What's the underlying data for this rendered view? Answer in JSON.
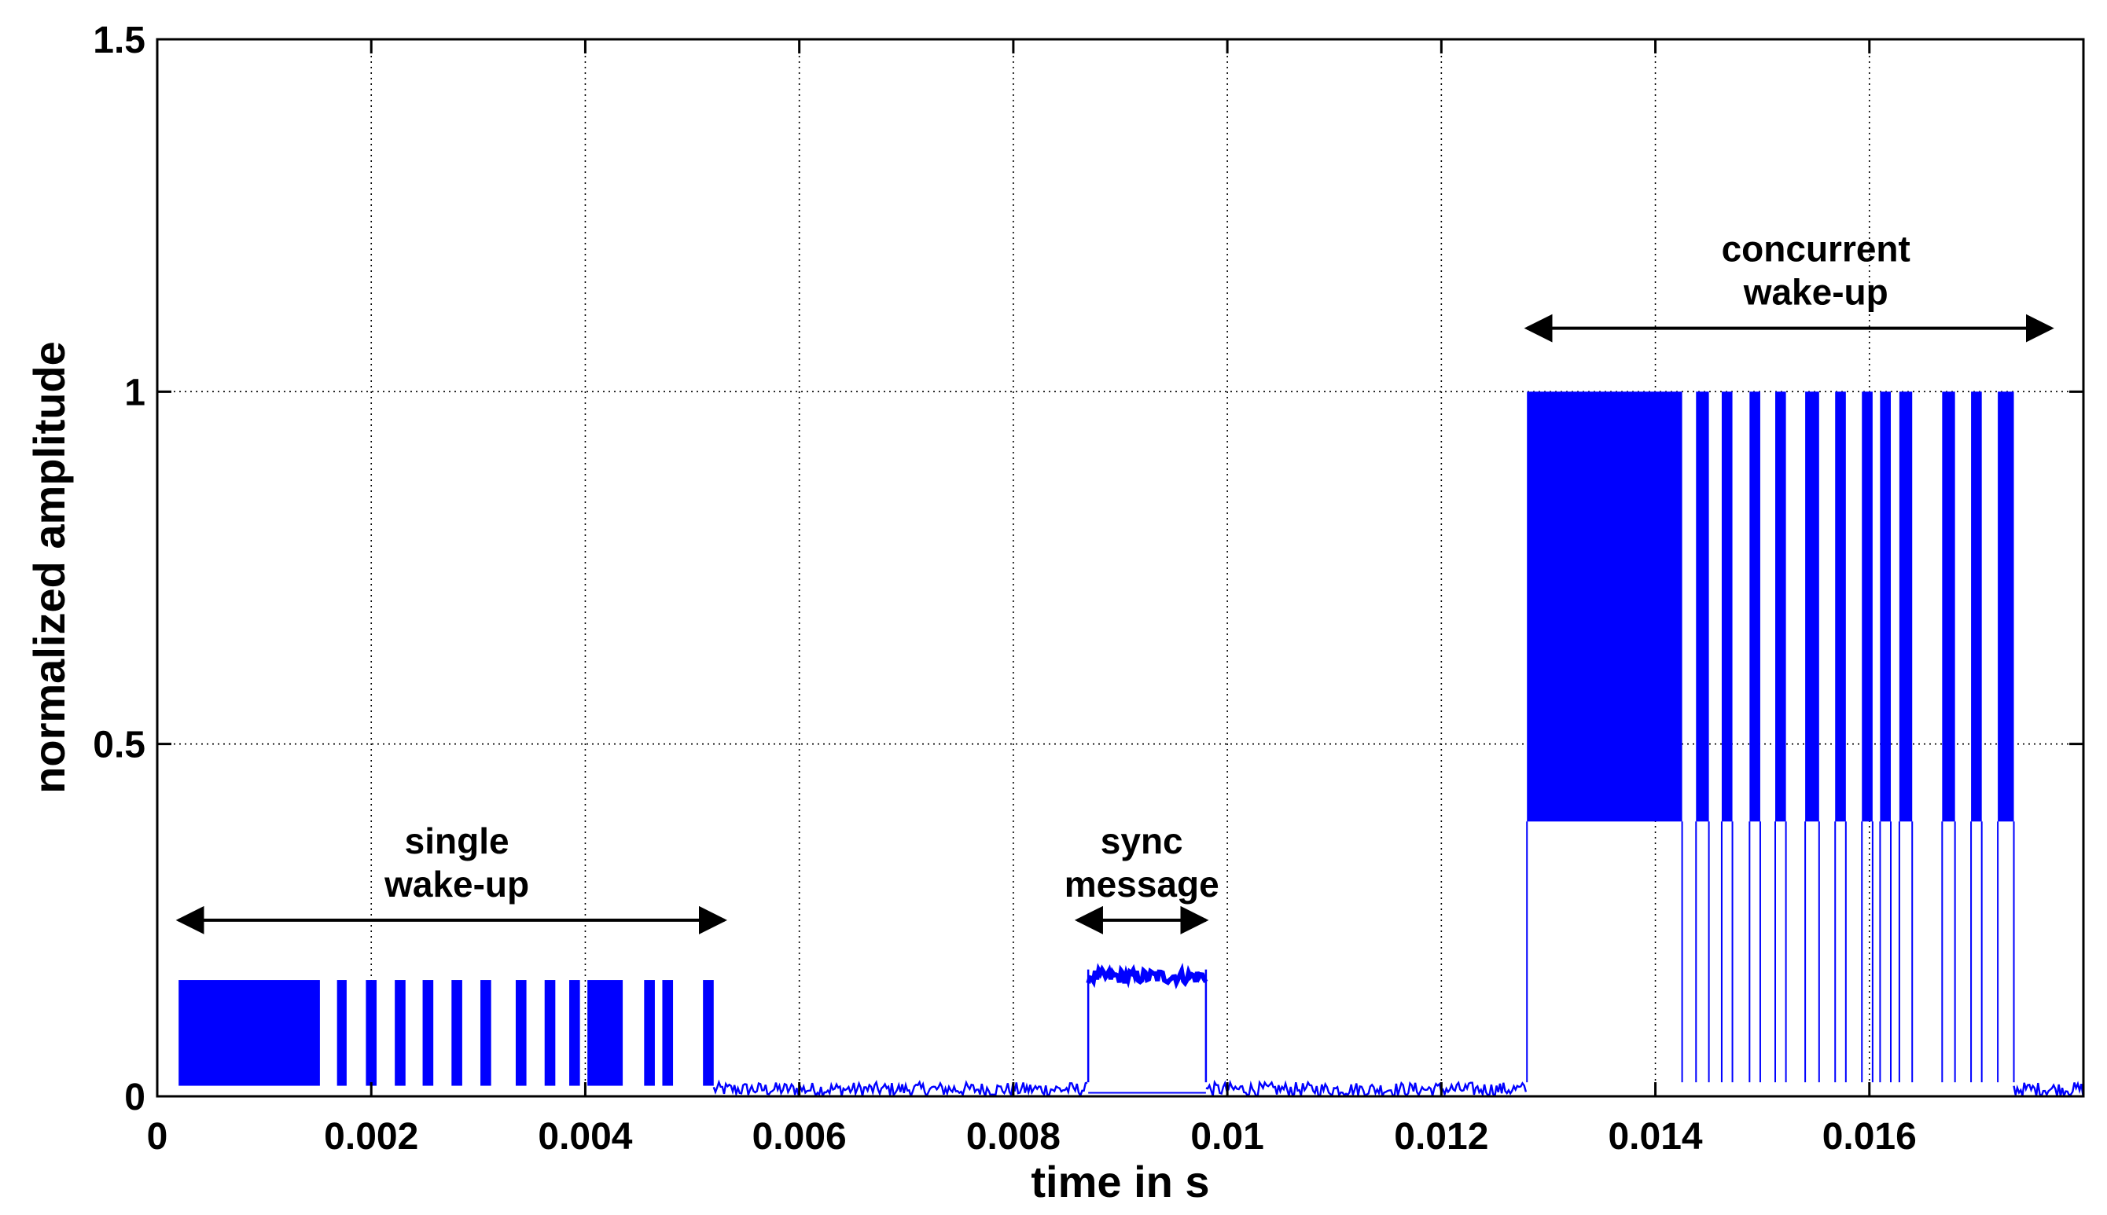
{
  "chart_data": {
    "type": "line",
    "title": "",
    "xlabel": "time in s",
    "ylabel": "normalized amplitude",
    "xlim": [
      0,
      0.018
    ],
    "ylim": [
      0,
      1.5
    ],
    "xticks": [
      0,
      0.002,
      0.004,
      0.006,
      0.008,
      0.01,
      0.012,
      0.014,
      0.016
    ],
    "xtick_labels": [
      "0",
      "0.002",
      "0.004",
      "0.006",
      "0.008",
      "0.01",
      "0.012",
      "0.014",
      "0.016"
    ],
    "yticks": [
      0,
      0.5,
      1,
      1.5
    ],
    "ytick_labels": [
      "0",
      "0.5",
      "1",
      "1.5"
    ],
    "grid": true,
    "series_color": "#0000ff",
    "segments": [
      {
        "kind": "carrier",
        "x0": 0.0002,
        "x1": 0.00152,
        "low": 0.015,
        "high": 0.165
      },
      {
        "kind": "carrier",
        "x0": 0.00168,
        "x1": 0.00177,
        "low": 0.015,
        "high": 0.165
      },
      {
        "kind": "carrier",
        "x0": 0.00195,
        "x1": 0.00205,
        "low": 0.015,
        "high": 0.165
      },
      {
        "kind": "carrier",
        "x0": 0.00222,
        "x1": 0.00232,
        "low": 0.015,
        "high": 0.165
      },
      {
        "kind": "carrier",
        "x0": 0.00248,
        "x1": 0.00258,
        "low": 0.015,
        "high": 0.165
      },
      {
        "kind": "carrier",
        "x0": 0.00275,
        "x1": 0.00285,
        "low": 0.015,
        "high": 0.165
      },
      {
        "kind": "carrier",
        "x0": 0.00302,
        "x1": 0.00312,
        "low": 0.015,
        "high": 0.165
      },
      {
        "kind": "carrier",
        "x0": 0.00335,
        "x1": 0.00345,
        "low": 0.015,
        "high": 0.165
      },
      {
        "kind": "carrier",
        "x0": 0.00362,
        "x1": 0.00372,
        "low": 0.015,
        "high": 0.165
      },
      {
        "kind": "carrier",
        "x0": 0.00385,
        "x1": 0.00395,
        "low": 0.015,
        "high": 0.165
      },
      {
        "kind": "carrier",
        "x0": 0.00402,
        "x1": 0.00435,
        "low": 0.015,
        "high": 0.165
      },
      {
        "kind": "carrier",
        "x0": 0.00455,
        "x1": 0.00465,
        "low": 0.015,
        "high": 0.165
      },
      {
        "kind": "carrier",
        "x0": 0.00472,
        "x1": 0.00482,
        "low": 0.015,
        "high": 0.165
      },
      {
        "kind": "carrier",
        "x0": 0.0051,
        "x1": 0.0052,
        "low": 0.015,
        "high": 0.165
      },
      {
        "kind": "noise",
        "x0": 0.0052,
        "x1": 0.0087,
        "low": 0.0,
        "high": 0.02
      },
      {
        "kind": "sync",
        "x0": 0.0087,
        "x1": 0.0098,
        "low": 0.0,
        "high": 0.18
      },
      {
        "kind": "noise",
        "x0": 0.0098,
        "x1": 0.0128,
        "low": 0.0,
        "high": 0.02
      },
      {
        "kind": "carrier",
        "x0": 0.0128,
        "x1": 0.01425,
        "low": 0.39,
        "high": 1.0
      },
      {
        "kind": "carrier",
        "x0": 0.01438,
        "x1": 0.0145,
        "low": 0.39,
        "high": 1.0
      },
      {
        "kind": "carrier",
        "x0": 0.01462,
        "x1": 0.01472,
        "low": 0.39,
        "high": 1.0
      },
      {
        "kind": "carrier",
        "x0": 0.01488,
        "x1": 0.01498,
        "low": 0.39,
        "high": 1.0
      },
      {
        "kind": "carrier",
        "x0": 0.01512,
        "x1": 0.01522,
        "low": 0.39,
        "high": 1.0
      },
      {
        "kind": "carrier",
        "x0": 0.0154,
        "x1": 0.01553,
        "low": 0.39,
        "high": 1.0
      },
      {
        "kind": "carrier",
        "x0": 0.01568,
        "x1": 0.01578,
        "low": 0.39,
        "high": 1.0
      },
      {
        "kind": "carrier",
        "x0": 0.01593,
        "x1": 0.01603,
        "low": 0.39,
        "high": 1.0
      },
      {
        "kind": "carrier",
        "x0": 0.0161,
        "x1": 0.0162,
        "low": 0.39,
        "high": 1.0
      },
      {
        "kind": "carrier",
        "x0": 0.01628,
        "x1": 0.0164,
        "low": 0.39,
        "high": 1.0
      },
      {
        "kind": "carrier",
        "x0": 0.01668,
        "x1": 0.0168,
        "low": 0.39,
        "high": 1.0
      },
      {
        "kind": "carrier",
        "x0": 0.01695,
        "x1": 0.01705,
        "low": 0.39,
        "high": 1.0
      },
      {
        "kind": "carrier",
        "x0": 0.0172,
        "x1": 0.01735,
        "low": 0.39,
        "high": 1.0
      },
      {
        "kind": "noise",
        "x0": 0.01735,
        "x1": 0.018,
        "low": 0.0,
        "high": 0.02
      }
    ],
    "annotations": [
      {
        "name": "single-wake-up",
        "lines": [
          "single",
          "wake-up"
        ],
        "x0": 0.0002,
        "x1": 0.0053,
        "y": 0.25,
        "text_x": 0.0028
      },
      {
        "name": "sync-message",
        "lines": [
          "sync",
          "message"
        ],
        "x0": 0.0086,
        "x1": 0.0098,
        "y": 0.25,
        "text_x": 0.0092
      },
      {
        "name": "concurrent-wake-up",
        "lines": [
          "concurrent",
          "wake-up"
        ],
        "x0": 0.0128,
        "x1": 0.0177,
        "y": 1.09,
        "text_x": 0.0155
      }
    ]
  }
}
